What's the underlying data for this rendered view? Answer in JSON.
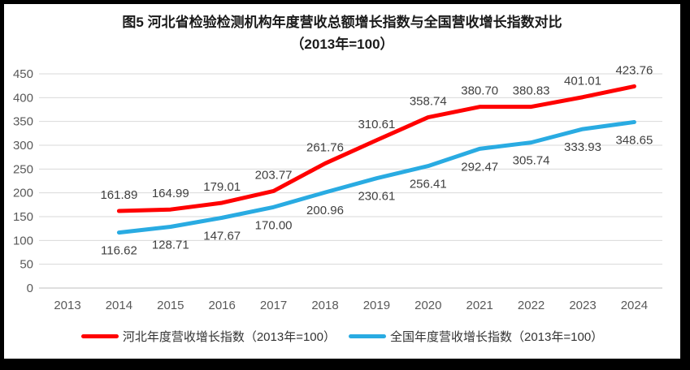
{
  "figure": {
    "title_line1": "图5  河北省检验检测机构年度营收总额增长指数与全国营收增长指数对比",
    "title_line2": "（2013年=100）"
  },
  "colors": {
    "hebei_line": "#FF0000",
    "national_line": "#29ABE2",
    "gridline": "#D9D9D9",
    "axis_line": "#BFBFBF",
    "axis_text": "#595959",
    "data_label_text": "#404040",
    "title_text": "#1A1A1A",
    "border": "#000000",
    "background": "#FFFFFF"
  },
  "chart_data": {
    "type": "line",
    "title": "图5  河北省检验检测机构年度营收总额增长指数与全国营收增长指数对比（2013年=100）",
    "categories": [
      "2013",
      "2014",
      "2015",
      "2016",
      "2017",
      "2018",
      "2019",
      "2020",
      "2021",
      "2022",
      "2023",
      "2024"
    ],
    "series": [
      {
        "name": "河北年度营收增长指数（2013年=100）",
        "color": "#FF0000",
        "label_position": "above",
        "values": [
          null,
          161.89,
          164.99,
          179.01,
          203.77,
          261.76,
          310.61,
          358.74,
          380.7,
          380.83,
          401.01,
          423.76
        ]
      },
      {
        "name": "全国年度营收增长指数（2013年=100）",
        "color": "#29ABE2",
        "label_position": "below",
        "values": [
          null,
          116.62,
          128.71,
          147.67,
          170.0,
          200.96,
          230.61,
          256.41,
          292.47,
          305.74,
          333.93,
          348.65
        ]
      }
    ],
    "ylim": [
      0,
      450
    ],
    "yticks": [
      0,
      50,
      100,
      150,
      200,
      250,
      300,
      350,
      400,
      450
    ],
    "grid": true,
    "legend_position": "bottom",
    "data_labels": true,
    "data_label_format": "0.00"
  }
}
